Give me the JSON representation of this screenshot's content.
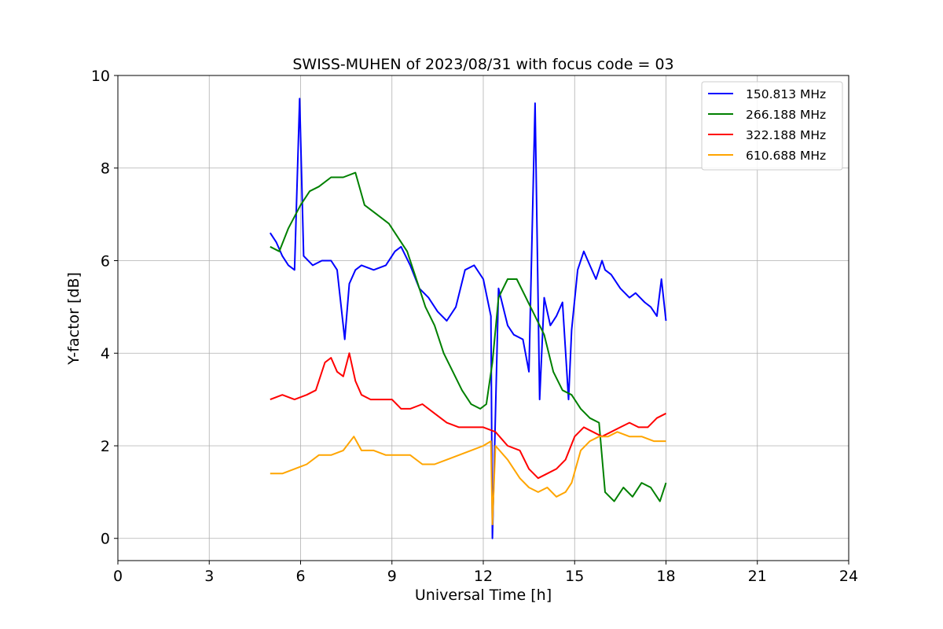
{
  "chart_data": {
    "type": "line",
    "title": "SWISS-MUHEN of 2023/08/31 with focus code = 03",
    "xlabel": "Universal Time [h]",
    "ylabel": "Y-factor [dB]",
    "xlim": [
      0,
      24
    ],
    "ylim": [
      -0.48,
      10
    ],
    "xticks": [
      "0",
      "3",
      "6",
      "9",
      "12",
      "15",
      "18",
      "21",
      "24"
    ],
    "yticks": [
      "0",
      "2",
      "4",
      "6",
      "8",
      "10"
    ],
    "grid": true,
    "legend_position": "top-right",
    "series": [
      {
        "name": "150.813 MHz",
        "color": "#0000ff",
        "x": [
          5.0,
          5.2,
          5.4,
          5.6,
          5.8,
          5.97,
          6.1,
          6.4,
          6.7,
          7.0,
          7.2,
          7.45,
          7.6,
          7.8,
          8.0,
          8.4,
          8.8,
          9.1,
          9.3,
          9.6,
          9.9,
          10.2,
          10.5,
          10.8,
          11.1,
          11.4,
          11.7,
          12.0,
          12.25,
          12.3,
          12.5,
          12.8,
          13.0,
          13.3,
          13.5,
          13.7,
          13.85,
          14.0,
          14.2,
          14.4,
          14.6,
          14.8,
          14.9,
          15.1,
          15.3,
          15.5,
          15.7,
          15.9,
          16.0,
          16.2,
          16.5,
          16.8,
          17.0,
          17.3,
          17.5,
          17.7,
          17.85,
          18.0
        ],
        "y": [
          6.6,
          6.4,
          6.1,
          5.9,
          5.8,
          9.5,
          6.1,
          5.9,
          6.0,
          6.0,
          5.8,
          4.3,
          5.5,
          5.8,
          5.9,
          5.8,
          5.9,
          6.2,
          6.3,
          5.9,
          5.4,
          5.2,
          4.9,
          4.7,
          5.0,
          5.8,
          5.9,
          5.6,
          4.8,
          0.0,
          5.4,
          4.6,
          4.4,
          4.3,
          3.6,
          9.4,
          3.0,
          5.2,
          4.6,
          4.8,
          5.1,
          3.0,
          4.5,
          5.8,
          6.2,
          5.9,
          5.6,
          6.0,
          5.8,
          5.7,
          5.4,
          5.2,
          5.3,
          5.1,
          5.0,
          4.8,
          5.6,
          4.7
        ]
      },
      {
        "name": "266.188 MHz",
        "color": "#008000",
        "x": [
          5.0,
          5.3,
          5.6,
          6.0,
          6.3,
          6.6,
          7.0,
          7.4,
          7.8,
          8.1,
          8.5,
          8.9,
          9.2,
          9.5,
          9.8,
          10.1,
          10.4,
          10.7,
          11.0,
          11.3,
          11.6,
          11.9,
          12.1,
          12.3,
          12.5,
          12.8,
          13.1,
          13.4,
          13.7,
          14.0,
          14.3,
          14.6,
          14.9,
          15.2,
          15.5,
          15.8,
          16.0,
          16.3,
          16.6,
          16.9,
          17.2,
          17.5,
          17.8,
          18.0
        ],
        "y": [
          6.3,
          6.2,
          6.7,
          7.2,
          7.5,
          7.6,
          7.8,
          7.8,
          7.9,
          7.2,
          7.0,
          6.8,
          6.5,
          6.2,
          5.6,
          5.0,
          4.6,
          4.0,
          3.6,
          3.2,
          2.9,
          2.8,
          2.9,
          3.8,
          5.2,
          5.6,
          5.6,
          5.2,
          4.8,
          4.4,
          3.6,
          3.2,
          3.1,
          2.8,
          2.6,
          2.5,
          1.0,
          0.8,
          1.1,
          0.9,
          1.2,
          1.1,
          0.8,
          1.2
        ]
      },
      {
        "name": "322.188 MHz",
        "color": "#ff0000",
        "x": [
          5.0,
          5.4,
          5.8,
          6.2,
          6.5,
          6.8,
          7.0,
          7.2,
          7.4,
          7.6,
          7.8,
          8.0,
          8.3,
          8.6,
          9.0,
          9.3,
          9.6,
          10.0,
          10.4,
          10.8,
          11.2,
          11.6,
          12.0,
          12.4,
          12.8,
          13.2,
          13.5,
          13.8,
          14.1,
          14.4,
          14.7,
          15.0,
          15.3,
          15.6,
          15.9,
          16.2,
          16.5,
          16.8,
          17.1,
          17.4,
          17.7,
          18.0
        ],
        "y": [
          3.0,
          3.1,
          3.0,
          3.1,
          3.2,
          3.8,
          3.9,
          3.6,
          3.5,
          4.0,
          3.4,
          3.1,
          3.0,
          3.0,
          3.0,
          2.8,
          2.8,
          2.9,
          2.7,
          2.5,
          2.4,
          2.4,
          2.4,
          2.3,
          2.0,
          1.9,
          1.5,
          1.3,
          1.4,
          1.5,
          1.7,
          2.2,
          2.4,
          2.3,
          2.2,
          2.3,
          2.4,
          2.5,
          2.4,
          2.4,
          2.6,
          2.7
        ]
      },
      {
        "name": "610.688 MHz",
        "color": "#ffa500",
        "x": [
          5.0,
          5.4,
          5.8,
          6.2,
          6.6,
          7.0,
          7.4,
          7.75,
          8.0,
          8.4,
          8.8,
          9.2,
          9.6,
          10.0,
          10.4,
          10.8,
          11.2,
          11.6,
          12.0,
          12.25,
          12.3,
          12.4,
          12.8,
          13.2,
          13.5,
          13.8,
          14.1,
          14.4,
          14.7,
          14.9,
          15.2,
          15.5,
          15.8,
          16.1,
          16.4,
          16.8,
          17.2,
          17.6,
          18.0
        ],
        "y": [
          1.4,
          1.4,
          1.5,
          1.6,
          1.8,
          1.8,
          1.9,
          2.2,
          1.9,
          1.9,
          1.8,
          1.8,
          1.8,
          1.6,
          1.6,
          1.7,
          1.8,
          1.9,
          2.0,
          2.1,
          0.3,
          2.0,
          1.7,
          1.3,
          1.1,
          1.0,
          1.1,
          0.9,
          1.0,
          1.2,
          1.9,
          2.1,
          2.2,
          2.2,
          2.3,
          2.2,
          2.2,
          2.1,
          2.1
        ]
      }
    ]
  }
}
